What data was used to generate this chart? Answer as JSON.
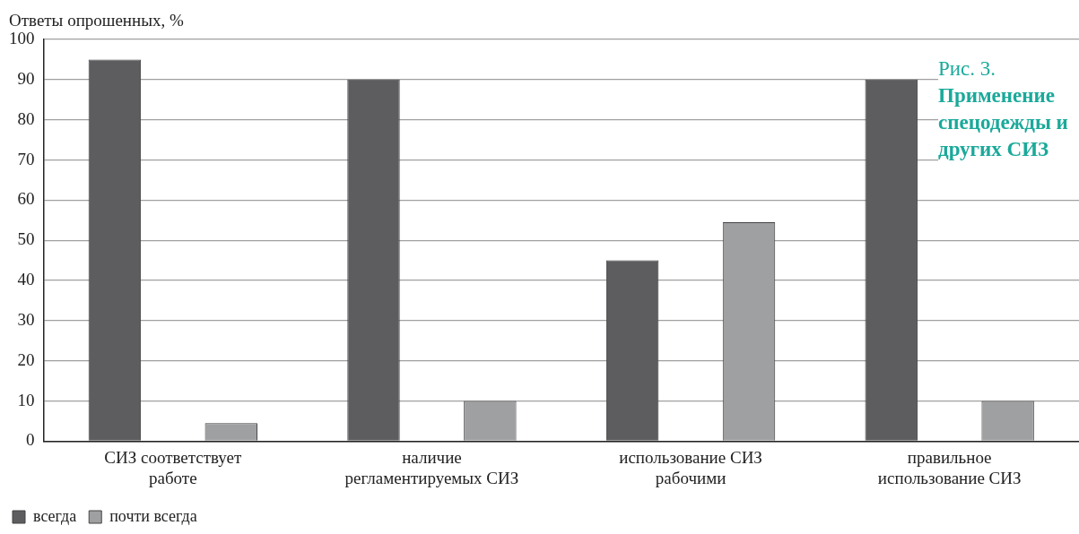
{
  "chart_data": {
    "type": "bar",
    "title": "Рис. 3.",
    "subtitle": "Применение спецодежды и других СИЗ",
    "ylabel": "Ответы опрошенных, %",
    "categories": [
      "СИЗ соответствует работе",
      "наличие регламентируемых СИЗ",
      "использование СИЗ рабочими",
      "правильное использование СИЗ"
    ],
    "series": [
      {
        "name": "всегда",
        "color": "#5d5d5f",
        "values": [
          95,
          90,
          45,
          90
        ]
      },
      {
        "name": "почти всегда",
        "color": "#9fa0a2",
        "values": [
          4.5,
          10,
          54.5,
          10
        ]
      }
    ],
    "ylim": [
      0,
      100
    ],
    "yticks": [
      0,
      10,
      20,
      30,
      40,
      50,
      60,
      70,
      80,
      90,
      100
    ],
    "grid": "y",
    "legend": "bottom left"
  }
}
